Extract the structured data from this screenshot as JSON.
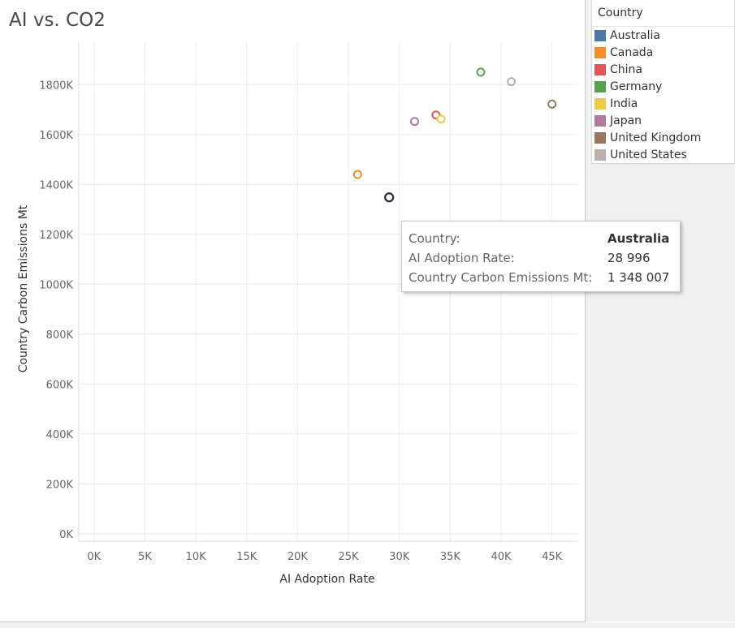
{
  "chart_data": {
    "type": "scatter",
    "title": "AI vs. CO2",
    "xlabel": "AI Adoption Rate",
    "ylabel": "Country Carbon Emissions Mt",
    "xlim": [
      -1500,
      47500
    ],
    "ylim": [
      -30000,
      1970000
    ],
    "x_ticks": [
      0,
      5000,
      10000,
      15000,
      20000,
      25000,
      30000,
      35000,
      40000,
      45000
    ],
    "x_tick_labels": [
      "0K",
      "5K",
      "10K",
      "15K",
      "20K",
      "25K",
      "30K",
      "35K",
      "40K",
      "45K"
    ],
    "y_ticks": [
      0,
      200000,
      400000,
      600000,
      800000,
      1000000,
      1200000,
      1400000,
      1600000,
      1800000
    ],
    "y_tick_labels": [
      "0K",
      "200K",
      "400K",
      "600K",
      "800K",
      "1000K",
      "1200K",
      "1400K",
      "1600K",
      "1800K"
    ],
    "grid": true,
    "legend_position": "right",
    "legend_title": "Country",
    "points": [
      {
        "country": "Australia",
        "x": 28996,
        "y": 1348007,
        "color": "#4e79a7",
        "highlighted": true
      },
      {
        "country": "Canada",
        "x": 25900,
        "y": 1440000,
        "color": "#f28e2b"
      },
      {
        "country": "China",
        "x": 33600,
        "y": 1678000,
        "color": "#e15759"
      },
      {
        "country": "Germany",
        "x": 38000,
        "y": 1850000,
        "color": "#59a14f"
      },
      {
        "country": "India",
        "x": 34100,
        "y": 1662000,
        "color": "#edc948"
      },
      {
        "country": "Japan",
        "x": 31500,
        "y": 1652000,
        "color": "#b07aa1"
      },
      {
        "country": "United Kingdom",
        "x": 45000,
        "y": 1722000,
        "color": "#9c755f"
      },
      {
        "country": "United States",
        "x": 41000,
        "y": 1812000,
        "color": "#bab0ac"
      }
    ]
  },
  "legend": {
    "title": "Country",
    "items": [
      {
        "label": "Australia",
        "color": "#4e79a7"
      },
      {
        "label": "Canada",
        "color": "#f28e2b"
      },
      {
        "label": "China",
        "color": "#e15759"
      },
      {
        "label": "Germany",
        "color": "#59a14f"
      },
      {
        "label": "India",
        "color": "#edc948"
      },
      {
        "label": "Japan",
        "color": "#b07aa1"
      },
      {
        "label": "United Kingdom",
        "color": "#9c755f"
      },
      {
        "label": "United States",
        "color": "#bab0ac"
      }
    ]
  },
  "tooltip": {
    "rows": [
      {
        "key": "Country:",
        "value": "Australia"
      },
      {
        "key": "AI Adoption Rate:",
        "value": "28 996"
      },
      {
        "key": "Country Carbon Emissions Mt:",
        "value": "1 348 007"
      }
    ]
  }
}
